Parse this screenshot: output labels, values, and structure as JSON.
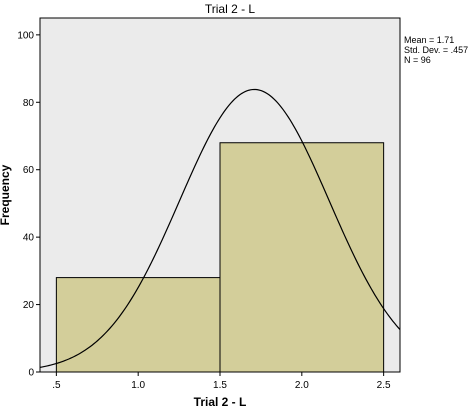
{
  "chart_data": {
    "type": "histogram",
    "title": "Trial 2 - L",
    "xlabel": "Trial 2 - L",
    "ylabel": "Frequency",
    "xlim": [
      0.4,
      2.6
    ],
    "ylim": [
      0,
      105
    ],
    "xticks": [
      0.5,
      1.0,
      1.5,
      2.0,
      2.5
    ],
    "xtick_labels": [
      ".5",
      "1.0",
      "1.5",
      "2.0",
      "2.5"
    ],
    "yticks": [
      0,
      20,
      40,
      60,
      80,
      100
    ],
    "ytick_labels": [
      "0",
      "20",
      "40",
      "60",
      "80",
      "100"
    ],
    "bins": [
      {
        "x0": 0.5,
        "x1": 1.5,
        "count": 28
      },
      {
        "x0": 1.5,
        "x1": 2.5,
        "count": 68
      }
    ],
    "normal_curve": {
      "mean": 1.71,
      "sd": 0.457,
      "n": 96,
      "bin_width": 1.0
    },
    "stats_lines": [
      "Mean = 1.71",
      "Std. Dev. = .457",
      "N = 96"
    ],
    "colors": {
      "plot_bg": "#ebebeb",
      "bar_fill": "#d3ce9a",
      "bar_edge": "#000000",
      "curve": "#000000"
    }
  }
}
